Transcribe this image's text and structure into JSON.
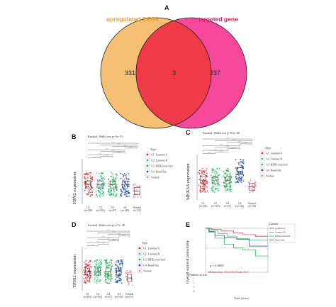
{
  "panels": {
    "A": {
      "letter": "A",
      "left_set": {
        "label": "upregulated DEGs",
        "color": "#f7bf73",
        "label_color": "#f29a2e"
      },
      "right_set": {
        "label": "targeted gene",
        "color": "#f5489a",
        "label_color": "#d81b60"
      },
      "intersection_color": "#f03a47",
      "counts": {
        "left_only": "331",
        "both": "3",
        "right_only": "237"
      }
    },
    "B": {
      "letter": "B",
      "ylabel": "FBN2 expression",
      "test": "Kruskal−Wallis test p=3e−31",
      "groups": [
        "G1\n(n=326)",
        "G2\n(n=192)",
        "G3\n(n=67)",
        "G4\n(n=140)",
        "Normal\n(n=113)"
      ],
      "legend_title": "Type",
      "legend": [
        "G1: Luminal A",
        "G2: Luminal B",
        "G3: HER2-enriched",
        "G4: Basal-like",
        "Normal"
      ]
    },
    "C": {
      "letter": "C",
      "ylabel": "MEX3A expression",
      "test": "Kruskal−Wallis test p=8.2e−66",
      "groups": [
        "G1\n(n=330)",
        "G2\n(n=192)",
        "G3\n(n=67)",
        "G4\n(n=140)",
        "Normal\n(n=113)"
      ],
      "legend_title": "Type",
      "legend": [
        "G1: Luminal A",
        "G2: Luminal B",
        "G3: HER2-enriched",
        "G4: Basal-like",
        "Normal"
      ]
    },
    "D": {
      "letter": "D",
      "ylabel": "TP5S2 expression",
      "test": "Kruskal−Wallis test p=2.7e−46",
      "groups": [
        "G1\n(n=450)",
        "G2\n(n=192)",
        "G3\n(n=67)",
        "G4\n(n=140)",
        "Normal\n(n=113)"
      ],
      "legend_title": "Type",
      "legend": [
        "G1: Luminal A",
        "G2: Luminal B",
        "G3: HER2-enriched",
        "G4: Basal-like",
        "Normal"
      ]
    },
    "E": {
      "letter": "E",
      "ylabel": "Overall survival probability",
      "xlabel": "Time (years)",
      "pvalue": "p = 0.0085",
      "legend_title": "Cluster",
      "legend": [
        "Luminal A",
        "Luminal B",
        "HER2-enriched",
        "Basal-like"
      ],
      "risk_title": "Number at risk",
      "risk_rows": [
        "1",
        "2",
        "3",
        "4"
      ],
      "red_note": "Median time: 10.2,9.8,3.9 and 10.3"
    }
  },
  "colors": {
    "g1": "#e8212b",
    "g2": "#2fbf77",
    "g3": "#17b54a",
    "g4": "#1d4fb5",
    "normal": "#f08aa0",
    "sig": "#333333"
  }
}
